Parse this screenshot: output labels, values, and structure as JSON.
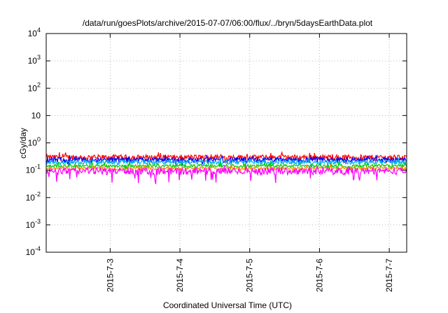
{
  "chart_data": {
    "type": "line",
    "title": "/data/run/goesPlots/archive/2015-07-07/06:00/flux/../bryn/5daysEarthData.plot",
    "xlabel": "Coordinated Universal Time (UTC)",
    "ylabel": "cGy/day",
    "yscale": "log",
    "ylim": [
      0.0001,
      10000
    ],
    "y_ticks": [
      {
        "value": 0.0001,
        "base": "10",
        "exp": "-4"
      },
      {
        "value": 0.001,
        "base": "10",
        "exp": "-3"
      },
      {
        "value": 0.01,
        "base": "10",
        "exp": "-2"
      },
      {
        "value": 0.1,
        "base": "10",
        "exp": "-1"
      },
      {
        "value": 1,
        "base": "10",
        "exp": "0"
      },
      {
        "value": 10,
        "base": "10",
        "exp": ""
      },
      {
        "value": 100,
        "base": "10",
        "exp": "2"
      },
      {
        "value": 1000,
        "base": "10",
        "exp": "3"
      },
      {
        "value": 10000,
        "base": "10",
        "exp": "4"
      }
    ],
    "xlim": [
      "2015-07-02T02:00",
      "2015-07-07T06:00"
    ],
    "x_ticks": [
      {
        "value": "2015-07-03T00:00",
        "label": "2015-7-3"
      },
      {
        "value": "2015-07-04T00:00",
        "label": "2015-7-4"
      },
      {
        "value": "2015-07-05T00:00",
        "label": "2015-7-5"
      },
      {
        "value": "2015-07-06T00:00",
        "label": "2015-7-6"
      },
      {
        "value": "2015-07-07T00:00",
        "label": "2015-7-7"
      }
    ],
    "grid": true,
    "series": [
      {
        "color": "#ff0000",
        "level": 0.3,
        "noise": 0.22
      },
      {
        "color": "#0000ff",
        "level": 0.24,
        "noise": 0.22
      },
      {
        "color": "#00b0f0",
        "level": 0.2,
        "noise": 0.18
      },
      {
        "color": "#00cc00",
        "level": 0.145,
        "noise": 0.12
      },
      {
        "color": "#ff8c00",
        "level": 0.12,
        "noise": 0.12
      },
      {
        "color": "#ff00ff",
        "level": 0.095,
        "noise": 0.28
      }
    ]
  }
}
